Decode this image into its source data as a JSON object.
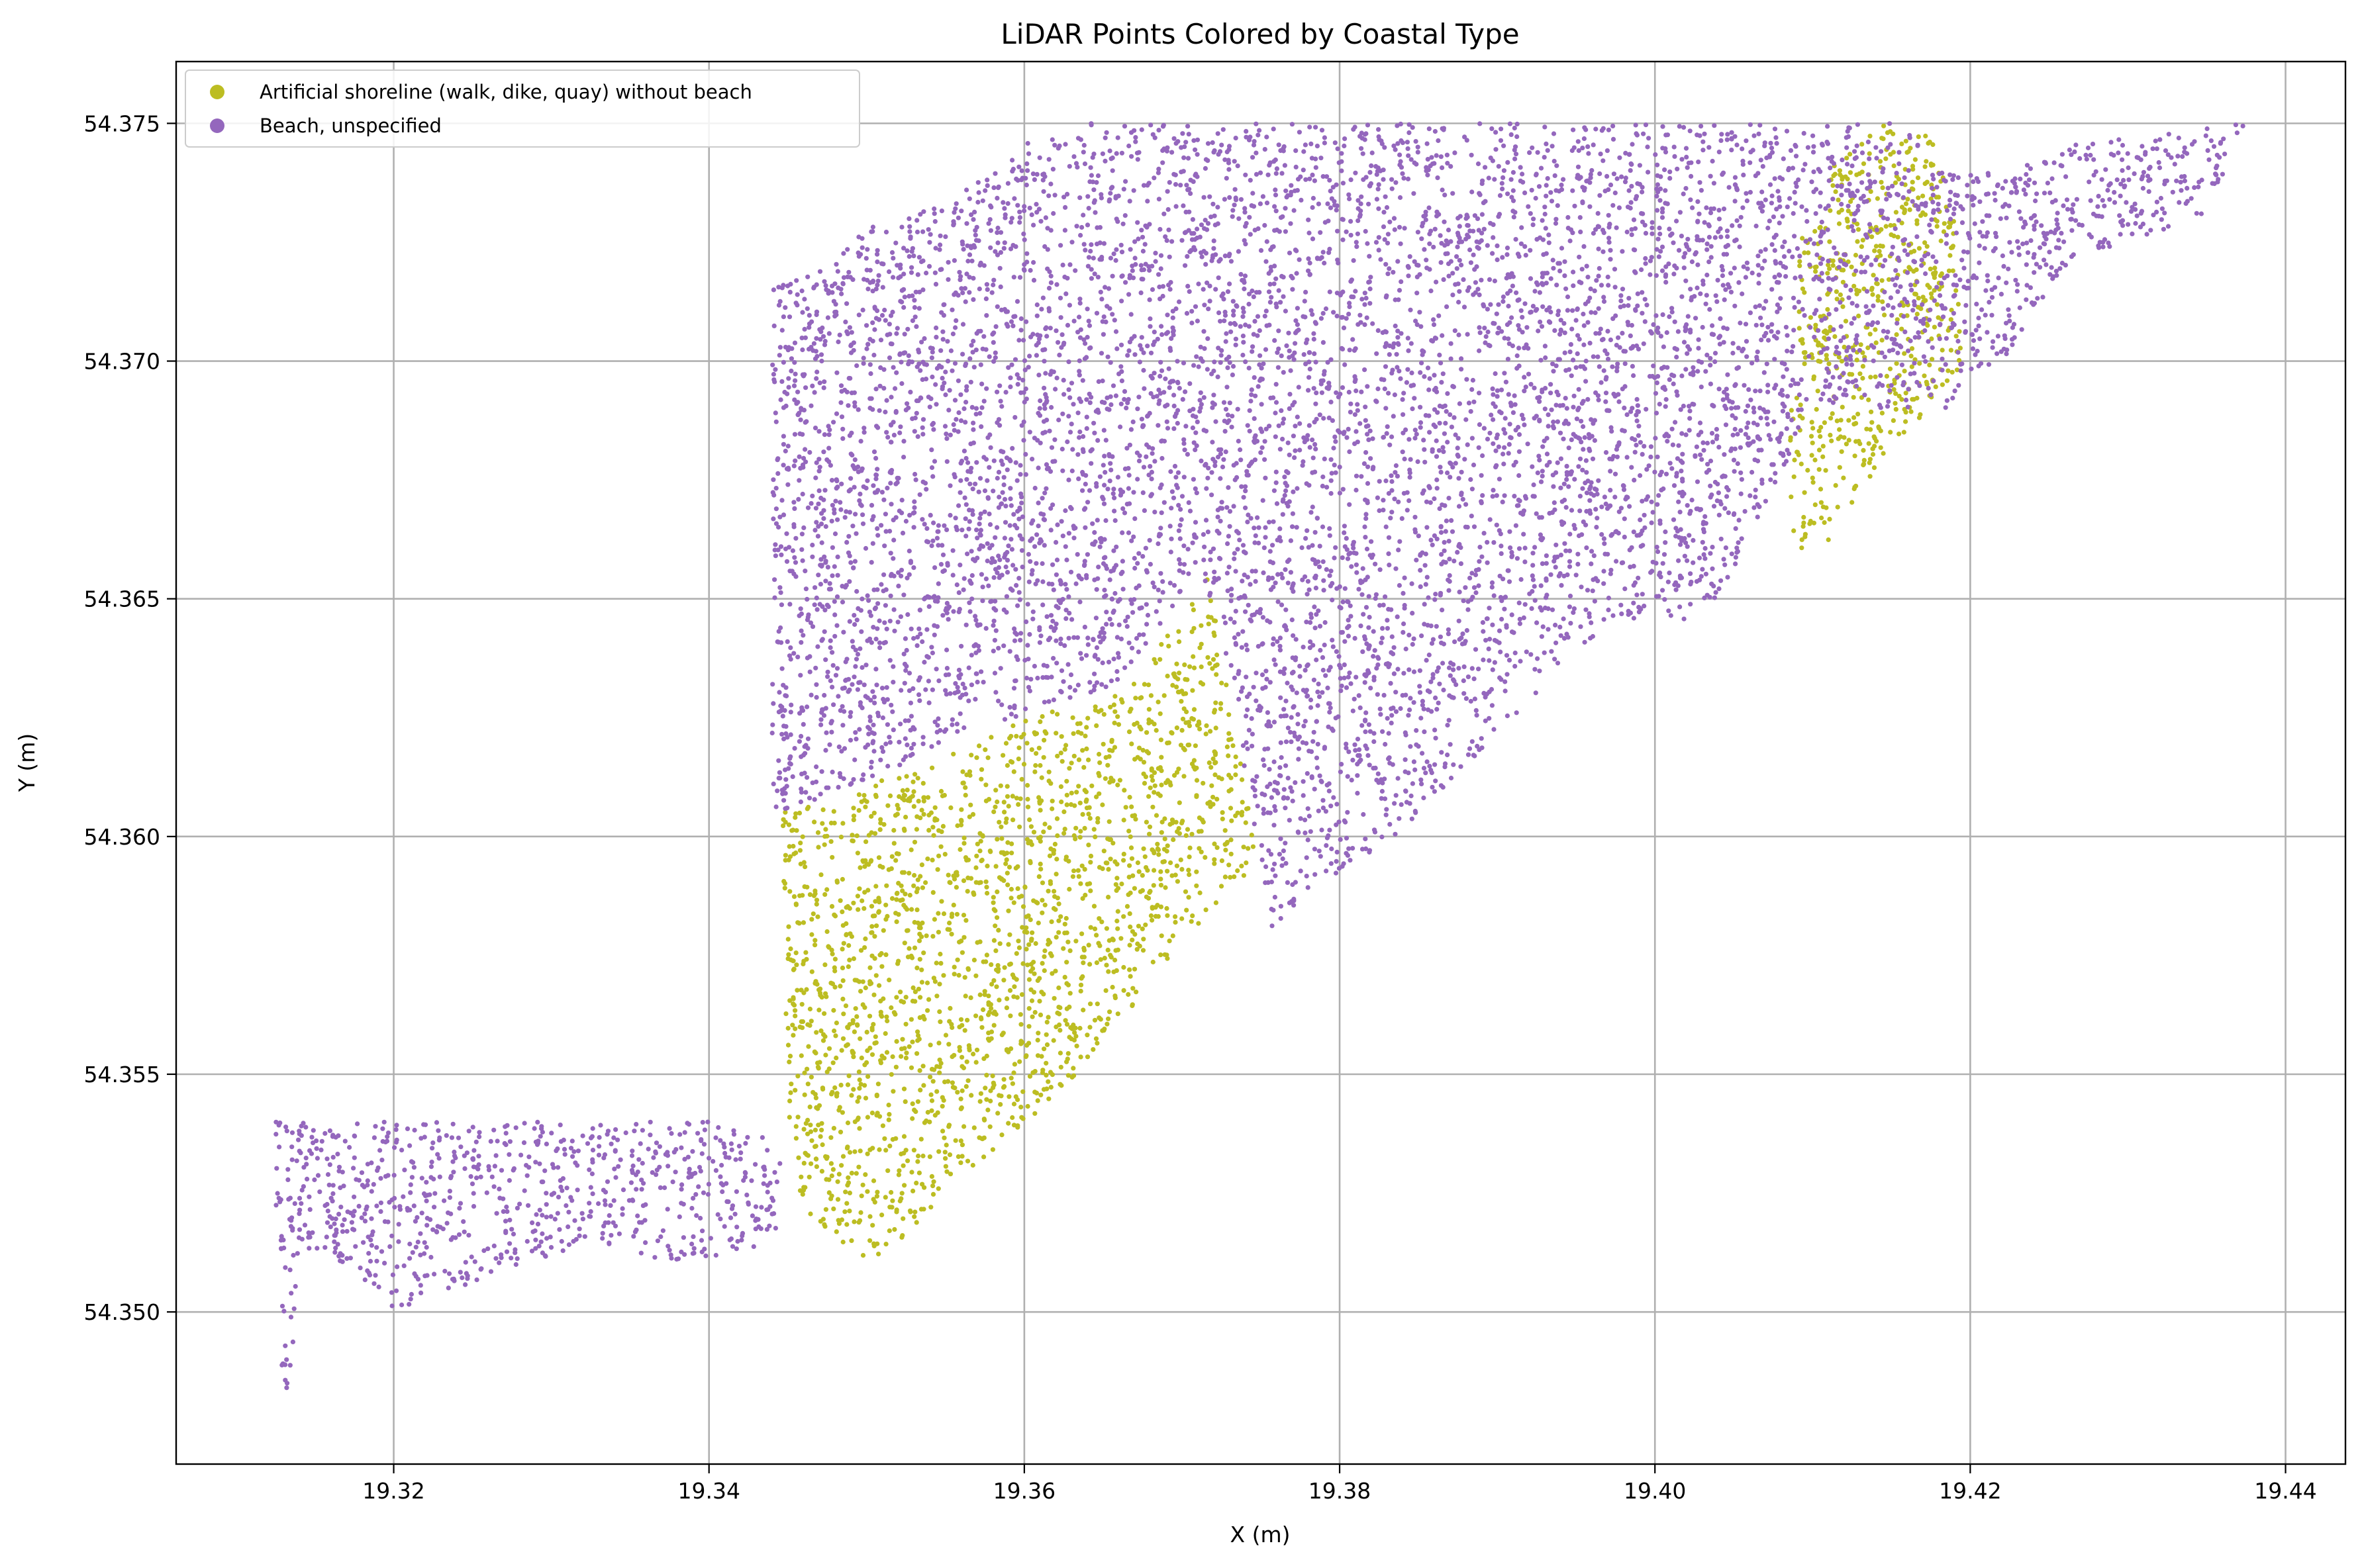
{
  "chart_data": {
    "type": "scatter",
    "title": "LiDAR Points Colored by Coastal Type",
    "xlabel": "X (m)",
    "ylabel": "Y (m)",
    "xlim": [
      19.3062,
      19.4438
    ],
    "ylim": [
      54.3468,
      54.3763
    ],
    "xticks": [
      "19.32",
      "19.34",
      "19.36",
      "19.38",
      "19.40",
      "19.42",
      "19.44"
    ],
    "yticks": [
      "54.350",
      "54.355",
      "54.360",
      "54.365",
      "54.370",
      "54.375"
    ],
    "grid": true,
    "legend_position": "upper-left",
    "series": [
      {
        "name": "Artificial shoreline (walk, dike, quay) without beach",
        "color": "#bcbd22",
        "regions": [
          [
            [
              19.3445,
              54.3605
            ],
            [
              19.3475,
              54.3607
            ],
            [
              19.3602,
              54.3625
            ],
            [
              19.3662,
              54.363
            ],
            [
              19.3718,
              54.3655
            ],
            [
              19.3733,
              54.3625
            ],
            [
              19.3748,
              54.3595
            ],
            [
              19.3702,
              54.3578
            ],
            [
              19.3628,
              54.3548
            ],
            [
              19.356,
              54.3528
            ],
            [
              19.3505,
              54.351
            ],
            [
              19.347,
              54.3518
            ],
            [
              19.3455,
              54.3525
            ],
            [
              19.3448,
              54.3545
            ],
            [
              19.3448,
              54.358
            ]
          ],
          [
            [
              19.4145,
              54.375
            ],
            [
              19.4175,
              54.375
            ],
            [
              19.419,
              54.373
            ],
            [
              19.4195,
              54.37
            ],
            [
              19.4188,
              54.3695
            ],
            [
              19.4135,
              54.3675
            ],
            [
              19.411,
              54.3662
            ],
            [
              19.4087,
              54.366
            ],
            [
              19.4085,
              54.368
            ],
            [
              19.4092,
              54.3725
            ],
            [
              19.4115,
              54.3742
            ]
          ]
        ]
      },
      {
        "name": "Beach, unspecified",
        "color": "#9467bd",
        "regions": [
          [
            [
              19.344,
              54.3715
            ],
            [
              19.3475,
              54.372
            ],
            [
              19.35,
              54.3728
            ],
            [
              19.355,
              54.3733
            ],
            [
              19.36,
              54.3746
            ],
            [
              19.364,
              54.375
            ],
            [
              19.405,
              54.375
            ],
            [
              19.416,
              54.375
            ],
            [
              19.4175,
              54.374
            ],
            [
              19.423,
              54.374
            ],
            [
              19.4255,
              54.3745
            ],
            [
              19.4375,
              54.375
            ],
            [
              19.435,
              54.373
            ],
            [
              19.427,
              54.3722
            ],
            [
              19.4255,
              54.3718
            ],
            [
              19.422,
              54.37
            ],
            [
              19.42,
              54.3698
            ],
            [
              19.419,
              54.369
            ],
            [
              19.41,
              54.369
            ],
            [
              19.404,
              54.365
            ],
            [
              19.4025,
              54.3645
            ],
            [
              19.397,
              54.3645
            ],
            [
              19.388,
              54.3615
            ],
            [
              19.3835,
              54.36
            ],
            [
              19.379,
              54.359
            ],
            [
              19.3755,
              54.358
            ],
            [
              19.3735,
              54.3625
            ],
            [
              19.371,
              54.3656
            ],
            [
              19.366,
              54.3632
            ],
            [
              19.36,
              54.3626
            ],
            [
              19.3472,
              54.3608
            ],
            [
              19.344,
              54.3605
            ]
          ],
          [
            [
              19.3125,
              54.354
            ],
            [
              19.3435,
              54.354
            ],
            [
              19.3452,
              54.3528
            ],
            [
              19.3438,
              54.3513
            ],
            [
              19.341,
              54.3512
            ],
            [
              19.337,
              54.351
            ],
            [
              19.333,
              54.3515
            ],
            [
              19.328,
              54.351
            ],
            [
              19.324,
              54.3505
            ],
            [
              19.32,
              54.35
            ],
            [
              19.317,
              54.351
            ],
            [
              19.3135,
              54.3515
            ],
            [
              19.3125,
              54.352
            ]
          ],
          [
            [
              19.3128,
              54.3518
            ],
            [
              19.314,
              54.3518
            ],
            [
              19.3135,
              54.3485
            ],
            [
              19.3128,
              54.3482
            ]
          ]
        ]
      }
    ]
  }
}
